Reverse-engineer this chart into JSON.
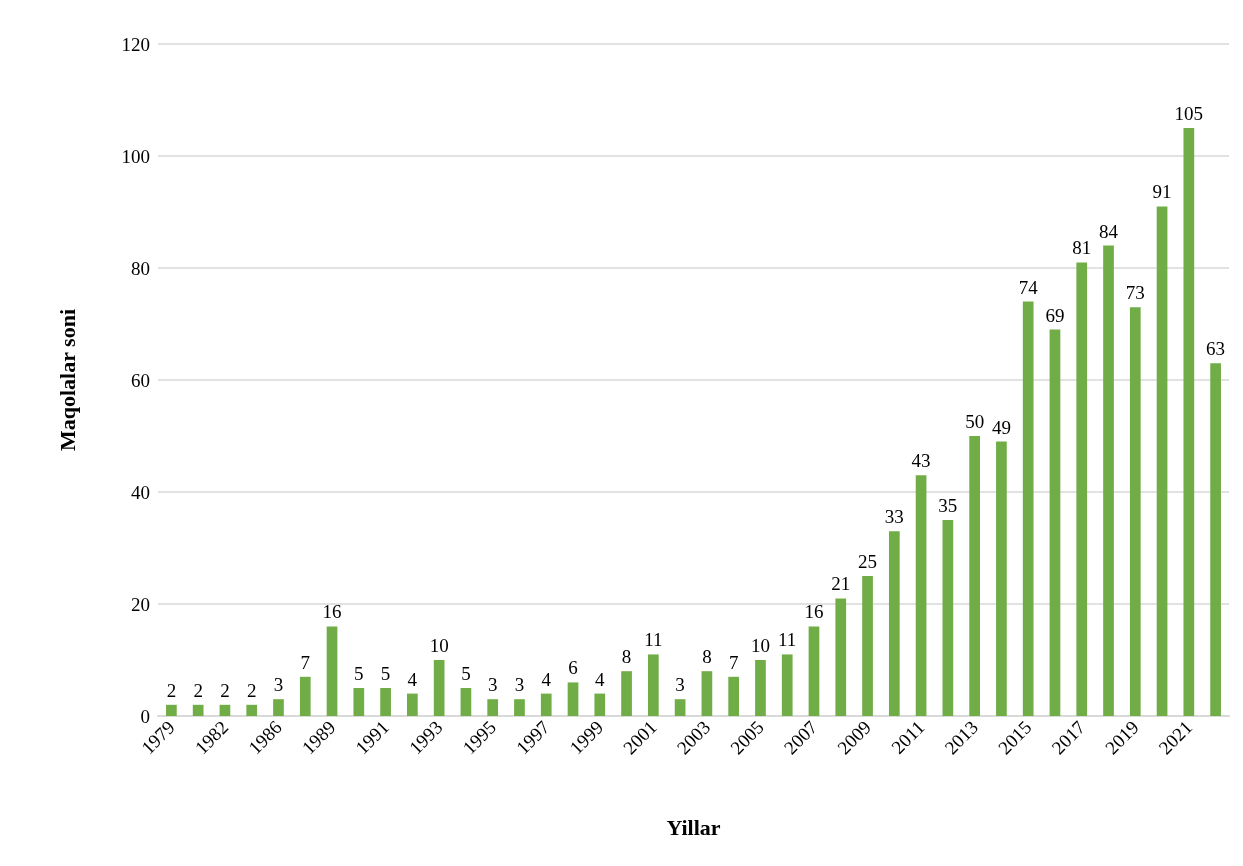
{
  "chart_data": {
    "type": "bar",
    "xlabel": "Yillar",
    "ylabel": "Maqolalar soni",
    "categories": [
      "1979",
      null,
      "1982",
      null,
      "1986",
      null,
      "1989",
      null,
      "1991",
      null,
      "1993",
      null,
      "1995",
      null,
      "1997",
      null,
      "1999",
      null,
      "2001",
      null,
      "2003",
      null,
      "2005",
      null,
      "2007",
      null,
      "2009",
      null,
      "2011",
      null,
      "2013",
      null,
      "2015",
      null,
      "2017",
      null,
      "2019",
      null,
      "2021",
      null
    ],
    "values": [
      2,
      2,
      2,
      2,
      3,
      7,
      16,
      5,
      5,
      4,
      10,
      5,
      3,
      3,
      4,
      6,
      4,
      8,
      11,
      3,
      8,
      7,
      10,
      11,
      16,
      21,
      25,
      33,
      43,
      35,
      50,
      49,
      74,
      69,
      81,
      84,
      73,
      91,
      105,
      63
    ],
    "color": "#70ad47",
    "ylim": [
      0,
      120
    ],
    "yticks": [
      0,
      20,
      40,
      60,
      80,
      100,
      120
    ],
    "grid": "y",
    "data_labels": true
  }
}
